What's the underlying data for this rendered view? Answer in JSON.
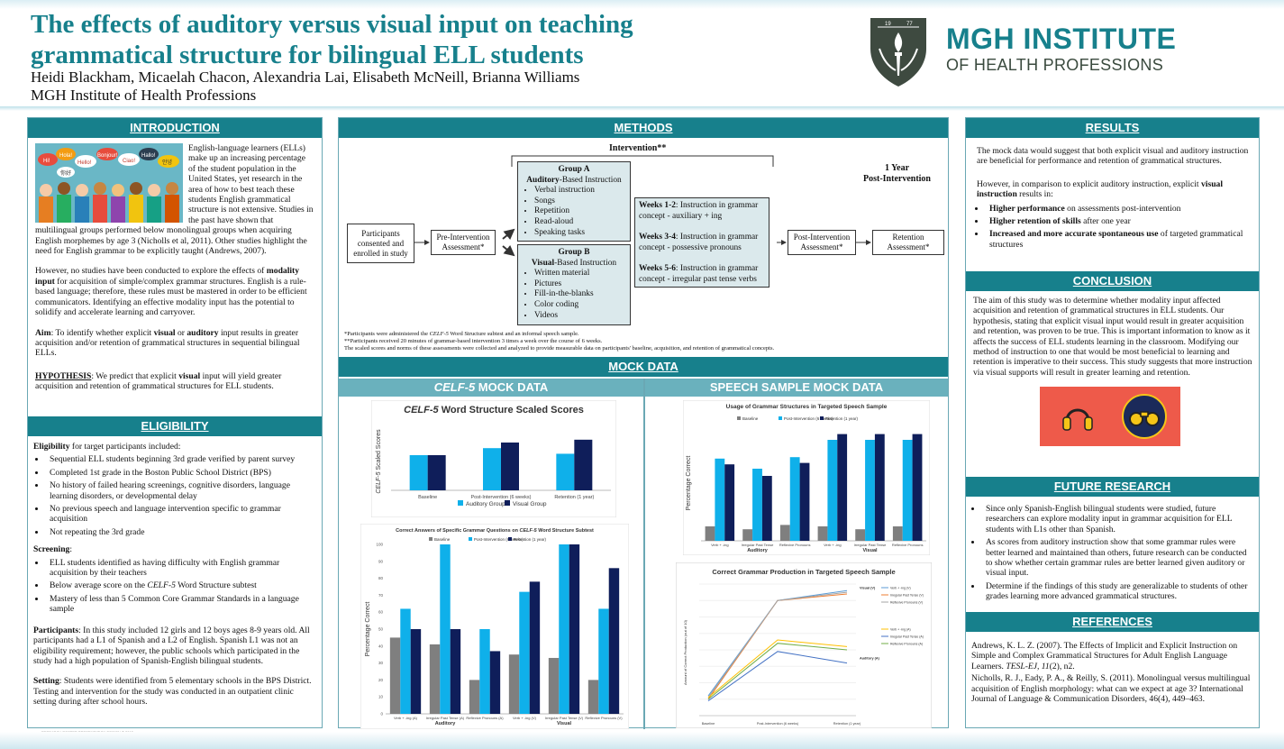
{
  "header": {
    "title": "The effects of auditory versus visual input on teaching grammatical structure for bilingual ELL students",
    "authors": "Heidi Blackham, Micaelah Chacon, Alexandria Lai, Elisabeth McNeill, Brianna Williams",
    "institution": "MGH Institute of Health Professions",
    "logo_line1": "MGH INSTITUTE",
    "logo_line2": "OF HEALTH PROFESSIONS",
    "logo_years": [
      "19",
      "77"
    ]
  },
  "colors": {
    "accent": "#17808c",
    "subheader": "#6ab1bd",
    "light_blue": "#0fb0ea",
    "navy": "#0f1e5a",
    "grey": "#7f7f7f",
    "icon_bg": "#ee5a4a"
  },
  "introduction": {
    "heading": "INTRODUCTION",
    "speech_bubbles": [
      "Hi!",
      "Hola!",
      "Hello!",
      "Bonjour!",
      "Ciao!",
      "Hallo!",
      "안녕",
      "你好"
    ],
    "p1": "English-language learners (ELLs) make up an increasing percentage of the student population in the United States, yet research in the area of how to best teach these students English grammatical structure is not extensive. Studies in the past have shown that multilingual groups performed below monolingual groups when acquiring English morphemes by age 3 (Nicholls et al, 2011). Other studies highlight the need for English grammar to be explicitly taught (Andrews, 2007).",
    "p2a": "However, no studies have been conducted to explore the effects of ",
    "p2b": "modality input",
    "p2c": " for acquisition of simple/complex grammar structures. English is a rule-based language; therefore, these rules must be mastered in order to be efficient communicators. Identifying an effective modality input has the potential to solidify and accelerate learning and carryover.",
    "aim_label": "Aim",
    "aim_a": ": To identify whether explicit ",
    "aim_visual": "visual",
    "aim_or": " or ",
    "aim_auditory": "auditory",
    "aim_b": " input results in greater acquisition and/or retention of grammatical structures in sequential bilingual ELLs.",
    "hyp_label": "HYPOTHESIS",
    "hyp_a": ": We predict that explicit ",
    "hyp_visual": "visual",
    "hyp_b": " input will yield greater acquisition and retention of grammatical structures for ELL students."
  },
  "eligibility": {
    "heading": "ELIGIBILITY",
    "intro_bold": "Eligibility",
    "intro_rest": " for target participants included:",
    "criteria": [
      "Sequential ELL students beginning 3rd grade verified by parent survey",
      "Completed 1st grade in the Boston Public School District (BPS)",
      "No history of failed hearing screenings, cognitive disorders, language learning disorders, or developmental delay",
      "No previous speech and language intervention specific to grammar acquisition",
      "Not repeating the 3rd grade"
    ],
    "screening_label": "Screening",
    "screening": [
      "ELL students identified as having difficulty with English grammar acquisition by their teachers",
      "Below average score on the ",
      "Mastery of less than 5 Common Core Grammar Standards in a language sample"
    ],
    "screening_celf": "CELF-5",
    "screening_celf_rest": " Word Structure subtest",
    "participants_label": "Participants",
    "participants": ": In this study included 12 girls and 12 boys ages 8-9 years old. All participants had a L1 of Spanish and a L2 of English. Spanish L1 was not an eligibility requirement; however, the public schools which participated in the study had a high population of Spanish-English bilingual students.",
    "setting_label": "Setting",
    "setting": ": Students were identified from 5 elementary schools in the BPS District. Testing and intervention for the study was conducted in an outpatient clinic setting during after school hours."
  },
  "methods": {
    "heading": "METHODS",
    "intervention_label": "Intervention**",
    "one_year": "1 Year",
    "post_intervention_label": "Post-Intervention",
    "participants_box": "Participants consented and enrolled in study",
    "pre_box": "Pre-Intervention Assessment*",
    "post_box": "Post-Intervention Assessment*",
    "retention_box": "Retention Assessment*",
    "groupA_title": "Group A",
    "groupA_sub_bold": "Auditory",
    "groupA_sub_rest": "-Based Instruction",
    "groupA_items": [
      "Verbal instruction",
      "Songs",
      "Repetition",
      "Read-aloud",
      "Speaking tasks"
    ],
    "groupB_title": "Group B",
    "groupB_sub_bold": "Visual",
    "groupB_sub_rest": "-Based Instruction",
    "groupB_items": [
      "Written material",
      "Pictures",
      "Fill-in-the-blanks",
      "Color coding",
      "Videos"
    ],
    "weeks": [
      {
        "label": "Weeks 1-2",
        "text": ": Instruction in grammar concept - auxiliary + ing"
      },
      {
        "label": "Weeks 3-4",
        "text": ": Instruction in grammar concept - possessive pronouns"
      },
      {
        "label": "Weeks 5-6",
        "text": ": Instruction in grammar concept - irregular past tense verbs"
      }
    ],
    "footnote1a": "*Participants were administered the ",
    "footnote1_celf": "CELF-5",
    "footnote1b": " Word Structure subtest and an informal speech sample.",
    "footnote2": "**Participants received 20 minutes of grammar-based intervention 3 times a week over the course of 6 weeks.",
    "footnote3": "The scaled scores and norms of these assessments were collected and analyzed to provide measurable data on participants' baseline, acquisition, and retention of grammatical concepts."
  },
  "mock_data": {
    "heading": "MOCK DATA",
    "celf_sub_italic": "CELF-5",
    "celf_sub_rest": " MOCK DATA",
    "speech_sub": "SPEECH SAMPLE MOCK DATA"
  },
  "chart_data": [
    {
      "type": "bar",
      "title_italic": "CELF-5",
      "title": " Word Structure Scaled Scores",
      "ylabel_italic": "CELF-5",
      "ylabel": " Scaled Scores",
      "categories": [
        "Baseline",
        "Post-Intervention (6 weeks)",
        "Retention (1 year)"
      ],
      "series": [
        {
          "name": "Auditory Group",
          "values": [
            5,
            6,
            5.2
          ]
        },
        {
          "name": "Visual Group",
          "values": [
            5,
            6.8,
            7.2
          ]
        }
      ],
      "ylim": [
        0,
        10
      ],
      "legend": "bottom"
    },
    {
      "type": "bar",
      "title": "Correct Answers of Specific Grammar Questions on ",
      "title_italic": "CELF-5",
      "title_rest": " Word Structure Subtest",
      "ylabel": "Percentage Correct",
      "yticks": [
        "0",
        "10",
        "20",
        "30",
        "40",
        "50",
        "60",
        "70",
        "80",
        "90",
        "100"
      ],
      "categories": [
        "Verb + -ing (A)",
        "Irregular Past Tense (A)",
        "Reflexive Pronouns (A)",
        "Verb + -ing (V)",
        "Irregular Past Tense (V)",
        "Reflexive Pronouns (V)"
      ],
      "group_labels": [
        "Auditory",
        "Visual"
      ],
      "series": [
        {
          "name": "Baseline",
          "values": [
            45,
            41,
            20,
            35,
            33,
            20
          ]
        },
        {
          "name": "Post-Intervention (6 weeks)",
          "values": [
            62,
            100,
            50,
            72,
            100,
            62
          ]
        },
        {
          "name": "Retention (1 year)",
          "values": [
            50,
            50,
            37,
            78,
            100,
            86
          ]
        }
      ],
      "ylim": [
        0,
        100
      ],
      "legend": "top"
    },
    {
      "type": "bar",
      "title": "Usage of Grammar Structures in Targeted Speech Sample",
      "ylabel": "Percentage Correct",
      "categories": [
        "Verb + -ing",
        "Irregular Past Tense",
        "Reflexive Pronouns",
        "Verb + -ing",
        "Irregular Past Tense",
        "Reflexive Pronouns"
      ],
      "group_labels": [
        "Auditory",
        "Visual"
      ],
      "series": [
        {
          "name": "Baseline",
          "values": [
            10,
            8,
            11,
            10,
            8,
            10
          ]
        },
        {
          "name": "Post-Intervention (6 weeks)",
          "values": [
            57,
            50,
            58,
            70,
            70,
            70
          ]
        },
        {
          "name": "Retention (1 year)",
          "values": [
            53,
            45,
            54,
            74,
            74,
            74
          ]
        }
      ],
      "ylim": [
        0,
        80
      ],
      "legend": "top"
    },
    {
      "type": "line",
      "title": "Correct Grammar Production in Targeted Speech Sample",
      "ylabel": "Amount of Correct Production (out of 10)",
      "categories": [
        "Baseline",
        "Post-Intervention (6 weeks)",
        "Retention (1 year)"
      ],
      "group_labels": [
        "Visual (V)",
        "Auditory (A)"
      ],
      "series": [
        {
          "name": "Verb + -ing (V)",
          "values": [
            1.2,
            7,
            7.6
          ]
        },
        {
          "name": "Irregular Past Tense (V)",
          "values": [
            1,
            7,
            7.4
          ]
        },
        {
          "name": "Reflexive Pronouns (V)",
          "values": [
            1.1,
            7,
            7.5
          ]
        },
        {
          "name": "Verb + -ing (A)",
          "values": [
            1.1,
            4.6,
            4.2
          ]
        },
        {
          "name": "Irregular Past Tense (A)",
          "values": [
            0.9,
            3.9,
            3.2
          ]
        },
        {
          "name": "Reflexive Pronouns (A)",
          "values": [
            1,
            4.4,
            4
          ]
        }
      ],
      "ylim": [
        0,
        8
      ],
      "legend": "right"
    }
  ],
  "results": {
    "heading": "RESULTS",
    "p1": "The mock data would suggest that both explicit visual and auditory instruction are beneficial for performance and retention of grammatical structures.",
    "p2a": "However, in comparison to explicit auditory instruction, explicit ",
    "p2b": "visual instruction",
    "p2c": " results in:",
    "bullets": [
      {
        "b": "Higher performance",
        "r": " on assessments post-intervention"
      },
      {
        "b": "Higher retention of skills",
        "r": " after one year"
      },
      {
        "b": "Increased and more accurate spontaneous use",
        "r": " of targeted grammatical structures"
      }
    ]
  },
  "conclusion": {
    "heading": "CONCLUSION",
    "text": "The aim of this study was to determine whether modality input affected acquisition and retention of grammatical structures in ELL students. Our hypothesis, stating that explicit visual input would result in greater acquisition and retention, was proven to be true. This is important information to know as it affects the success of ELL students learning in the classroom. Modifying our method of instruction to one that would be most beneficial to learning and retention is imperative to their success. This study suggests that more instruction via visual supports will result in greater learning and retention."
  },
  "future_research": {
    "heading": "FUTURE RESEARCH",
    "bullets": [
      "Since only Spanish-English bilingual students were studied, future researchers can explore modality input in grammar acquisition for ELL students with L1s other than Spanish.",
      "As scores from auditory instruction show that some grammar rules were better learned and maintained than others, future research can be conducted to show whether certain grammar rules are better learned given  auditory or visual input.",
      "Determine if the findings of this study are generalizable to students of other grades learning more advanced grammatical structures."
    ]
  },
  "references": {
    "heading": "REFERENCES",
    "ref1a": "Andrews, K. L. Z. (2007). The Effects of Implicit and Explicit Instruction on Simple and Complex Grammatical Structures for Adult English Language Learners. ",
    "ref1_journal": "TESL-EJ, 11",
    "ref1b": "(2), n2.",
    "ref2": "Nicholls, R. J., Eady, P. A., & Reilly, S. (2011). Monolingual versus multilingual acquisition of English morphology: what can we expect at age 3? International Journal of Language & Communication Disorders, 46(4), 449–463."
  },
  "footer": {
    "line1": "RESEARCH POSTER PRESENTATION DESIGN © 2015",
    "line2": "www.PosterPresentations.com"
  }
}
